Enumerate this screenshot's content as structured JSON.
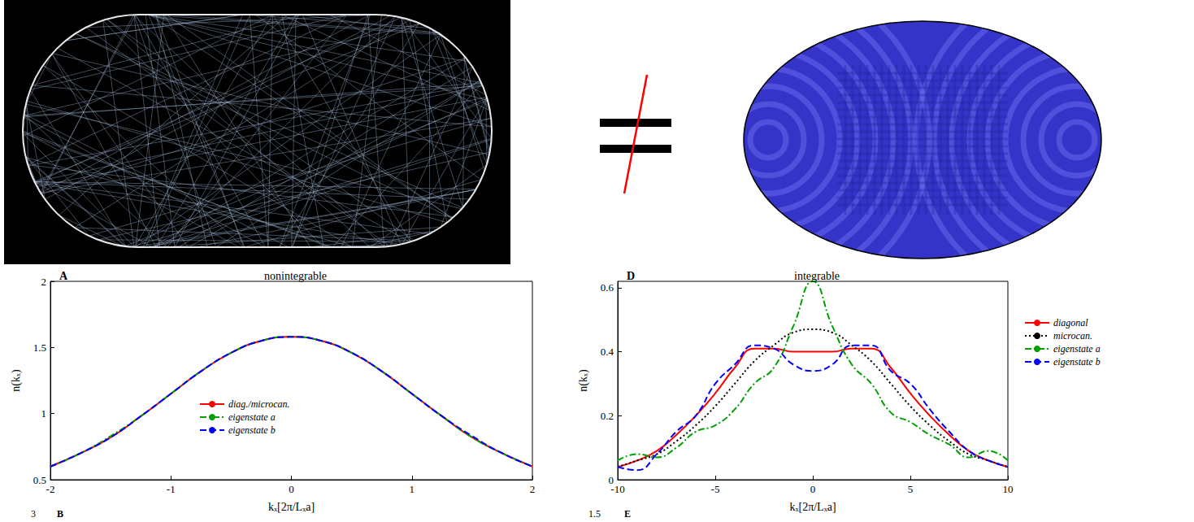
{
  "chart_data": [
    {
      "type": "line",
      "panel": "A",
      "title": "nonintegrable",
      "xlabel": "kₓ[2π/Lₓa]",
      "ylabel": "n(kₓ)",
      "x": [
        -2,
        -1.75,
        -1.5,
        -1.25,
        -1,
        -0.75,
        -0.5,
        -0.25,
        0,
        0.25,
        0.5,
        0.75,
        1,
        1.25,
        1.5,
        1.75,
        2
      ],
      "xlim": [
        -2,
        2
      ],
      "xticks": [
        -2,
        -1,
        0,
        1,
        2
      ],
      "ylim": [
        0.5,
        2
      ],
      "yticks": [
        0.5,
        1,
        1.5,
        2
      ],
      "legend": "bottom",
      "series": [
        {
          "name": "diag./microcan.",
          "color": "#ff0000",
          "line_style": "solid",
          "values": [
            0.6,
            0.7,
            0.82,
            0.98,
            1.15,
            1.32,
            1.46,
            1.55,
            1.58,
            1.55,
            1.46,
            1.32,
            1.15,
            0.98,
            0.82,
            0.7,
            0.6
          ]
        },
        {
          "name": "eigenstate a",
          "color": "#00a000",
          "line_style": "dashdot",
          "values": [
            0.6,
            0.7,
            0.83,
            0.98,
            1.15,
            1.32,
            1.46,
            1.55,
            1.58,
            1.55,
            1.46,
            1.32,
            1.15,
            0.98,
            0.82,
            0.7,
            0.6
          ]
        },
        {
          "name": "eigenstate b",
          "color": "#0000ff",
          "line_style": "dashed",
          "values": [
            0.6,
            0.7,
            0.82,
            0.98,
            1.15,
            1.32,
            1.46,
            1.55,
            1.58,
            1.55,
            1.46,
            1.32,
            1.15,
            0.98,
            0.83,
            0.7,
            0.6
          ]
        }
      ]
    },
    {
      "type": "line",
      "panel": "D",
      "title": "integrable",
      "xlabel": "kₓ[2π/Lₓa]",
      "ylabel": "n(kₓ)",
      "x": [
        -10,
        -9,
        -8,
        -7,
        -6,
        -5,
        -4,
        -3,
        -2,
        -1,
        0,
        1,
        2,
        3,
        4,
        5,
        6,
        7,
        8,
        9,
        10
      ],
      "xlim": [
        -10,
        10
      ],
      "xticks": [
        -10,
        -5,
        0,
        5,
        10
      ],
      "ylim": [
        0,
        0.62
      ],
      "yticks": [
        0,
        0.2,
        0.4,
        0.6
      ],
      "legend": "right",
      "series": [
        {
          "name": "diagonal",
          "color": "#ff0000",
          "line_style": "solid",
          "values": [
            0.04,
            0.06,
            0.09,
            0.14,
            0.2,
            0.27,
            0.35,
            0.41,
            0.41,
            0.4,
            0.4,
            0.4,
            0.41,
            0.41,
            0.35,
            0.27,
            0.2,
            0.14,
            0.09,
            0.06,
            0.04
          ]
        },
        {
          "name": "microcan.",
          "color": "#000000",
          "line_style": "dotted",
          "values": [
            0.04,
            0.06,
            0.08,
            0.12,
            0.17,
            0.23,
            0.3,
            0.37,
            0.42,
            0.46,
            0.47,
            0.46,
            0.42,
            0.37,
            0.3,
            0.23,
            0.17,
            0.12,
            0.08,
            0.06,
            0.04
          ]
        },
        {
          "name": "eigenstate a",
          "color": "#00a000",
          "line_style": "dashdot",
          "values": [
            0.06,
            0.08,
            0.07,
            0.1,
            0.15,
            0.17,
            0.22,
            0.3,
            0.35,
            0.48,
            0.62,
            0.48,
            0.36,
            0.3,
            0.21,
            0.18,
            0.14,
            0.11,
            0.07,
            0.09,
            0.06
          ]
        },
        {
          "name": "eigenstate b",
          "color": "#0000ff",
          "line_style": "dashed",
          "values": [
            0.04,
            0.03,
            0.08,
            0.15,
            0.2,
            0.3,
            0.36,
            0.42,
            0.41,
            0.36,
            0.34,
            0.36,
            0.42,
            0.42,
            0.34,
            0.3,
            0.22,
            0.15,
            0.09,
            0.06,
            0.04
          ]
        }
      ]
    }
  ],
  "cut_panels": [
    {
      "panel": "B",
      "ytick": 3
    },
    {
      "panel": "E",
      "ytick": 1.5
    }
  ]
}
